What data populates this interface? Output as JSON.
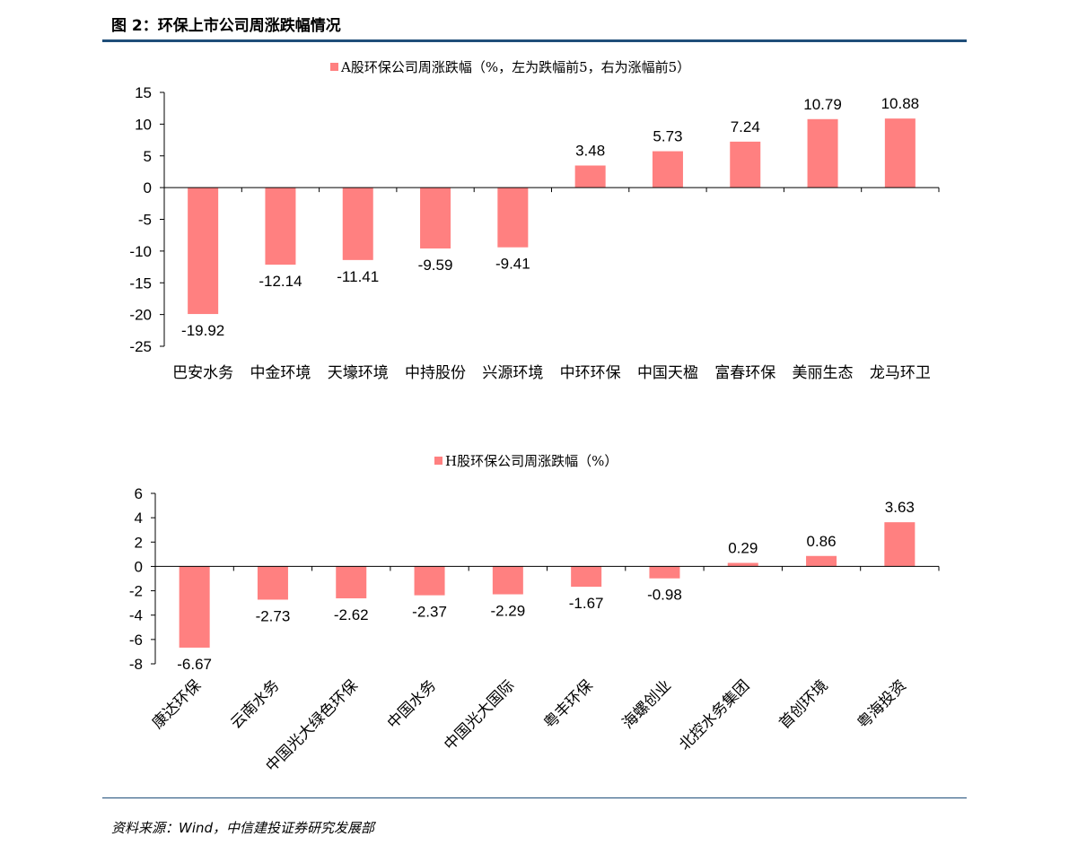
{
  "figure_title": "图 2：环保上市公司周涨跌幅情况",
  "source": "资料来源：Wind，中信建投证券研究发展部",
  "colors": {
    "bar": "#ff8080",
    "rule": "#1f4e79",
    "axis": "#000000"
  },
  "chart_data": [
    {
      "type": "bar",
      "legend": "A股环保公司周涨跌幅（%，左为跌幅前5，右为涨幅前5）",
      "legend_position": "top-center",
      "categories": [
        "巴安水务",
        "中金环境",
        "天壕环境",
        "中持股份",
        "兴源环境",
        "中环环保",
        "中国天楹",
        "富春环保",
        "美丽生态",
        "龙马环卫"
      ],
      "values": [
        -19.92,
        -12.14,
        -11.41,
        -9.59,
        -9.41,
        3.48,
        5.73,
        7.24,
        10.79,
        10.88
      ],
      "data_labels": [
        "-19.92",
        "-12.14",
        "-11.41",
        "-9.59",
        "-9.41",
        "3.48",
        "5.73",
        "7.24",
        "10.79",
        "10.88"
      ],
      "ylim": [
        -25,
        15
      ],
      "yticks": [
        "15",
        "10",
        "5",
        "0",
        "-5",
        "-10",
        "-15",
        "-20",
        "-25"
      ],
      "ytick_values": [
        15,
        10,
        5,
        0,
        -5,
        -10,
        -15,
        -20,
        -25
      ],
      "grid": false,
      "category_label_rotation": 0
    },
    {
      "type": "bar",
      "legend": "H股环保公司周涨跌幅（%）",
      "legend_position": "top-center",
      "categories": [
        "康达环保",
        "云南水务",
        "中国光大绿色环保",
        "中国水务",
        "中国光大国际",
        "粤丰环保",
        "海螺创业",
        "北控水务集团",
        "首创环境",
        "粤海投资"
      ],
      "values": [
        -6.67,
        -2.73,
        -2.62,
        -2.37,
        -2.29,
        -1.67,
        -0.98,
        0.29,
        0.86,
        3.63
      ],
      "data_labels": [
        "-6.67",
        "-2.73",
        "-2.62",
        "-2.37",
        "-2.29",
        "-1.67",
        "-0.98",
        "0.29",
        "0.86",
        "3.63"
      ],
      "ylim": [
        -8,
        6
      ],
      "yticks": [
        "6",
        "4",
        "2",
        "0",
        "-2",
        "-4",
        "-6",
        "-8"
      ],
      "ytick_values": [
        6,
        4,
        2,
        0,
        -2,
        -4,
        -6,
        -8
      ],
      "grid": false,
      "category_label_rotation": -45
    }
  ]
}
